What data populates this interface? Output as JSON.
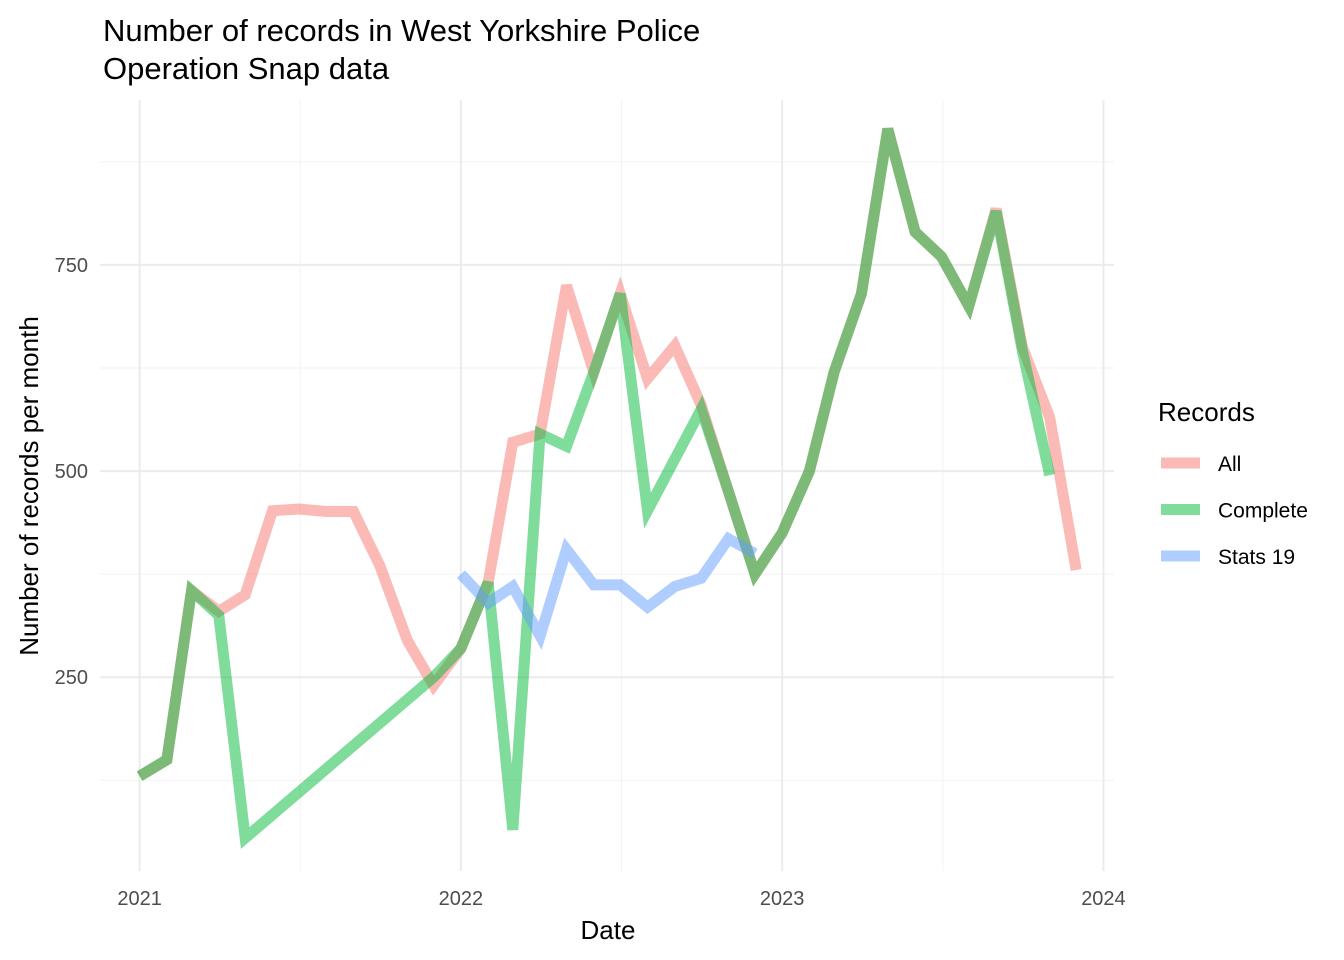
{
  "chart_data": {
    "type": "line",
    "title": "Number of records in West Yorkshire Police Operation Snap data",
    "title_lines": [
      "Number of records in West Yorkshire Police",
      "Operation Snap data"
    ],
    "xlabel": "Date",
    "ylabel": "Number of records per month",
    "x_axis": {
      "type": "date",
      "range": [
        "2020-11-17",
        "2024-01-13"
      ],
      "ticks": [
        "2021-01-01",
        "2022-01-01",
        "2023-01-01",
        "2024-01-01"
      ],
      "tick_labels": [
        "2021",
        "2022",
        "2023",
        "2024"
      ]
    },
    "y_axis": {
      "range": [
        15,
        950
      ],
      "ticks": [
        250,
        500,
        750
      ],
      "tick_labels": [
        "250",
        "500",
        "750"
      ]
    },
    "grid": true,
    "legend": {
      "title": "Records",
      "position": "right"
    },
    "series": [
      {
        "name": "All",
        "color": "#F8766D",
        "x": [
          "2021-01-01",
          "2021-02-01",
          "2021-03-01",
          "2021-04-01",
          "2021-05-01",
          "2021-06-01",
          "2021-07-01",
          "2021-08-01",
          "2021-09-01",
          "2021-10-01",
          "2021-11-01",
          "2021-12-01",
          "2022-01-01",
          "2022-02-01",
          "2022-03-01",
          "2022-04-01",
          "2022-05-01",
          "2022-06-01",
          "2022-07-01",
          "2022-08-01",
          "2022-09-01",
          "2022-10-01",
          "2022-11-01",
          "2022-12-01",
          "2023-01-01",
          "2023-02-01",
          "2023-03-01",
          "2023-04-01",
          "2023-05-01",
          "2023-06-01",
          "2023-07-01",
          "2023-08-01",
          "2023-09-01",
          "2023-10-01",
          "2023-11-01",
          "2023-12-01"
        ],
        "values": [
          130,
          150,
          355,
          330,
          350,
          452,
          454,
          451,
          451,
          385,
          295,
          240,
          285,
          365,
          535,
          545,
          725,
          620,
          715,
          612,
          652,
          580,
          475,
          375,
          425,
          500,
          620,
          715,
          915,
          790,
          760,
          700,
          818,
          650,
          565,
          380
        ]
      },
      {
        "name": "Complete",
        "color": "#00BA38",
        "x": [
          "2021-01-01",
          "2021-02-01",
          "2021-03-01",
          "2021-04-01",
          "2021-05-01",
          "2021-12-01",
          "2022-01-01",
          "2022-02-01",
          "2022-03-01",
          "2022-04-01",
          "2022-05-01",
          "2022-06-01",
          "2022-07-01",
          "2022-08-01",
          "2022-10-01",
          "2022-11-01",
          "2022-12-01",
          "2023-01-01",
          "2023-02-01",
          "2023-03-01",
          "2023-04-01",
          "2023-05-01",
          "2023-06-01",
          "2023-07-01",
          "2023-08-01",
          "2023-09-01",
          "2023-10-01",
          "2023-11-01"
        ],
        "values": [
          130,
          150,
          355,
          325,
          55,
          250,
          285,
          365,
          65,
          545,
          530,
          620,
          715,
          452,
          575,
          475,
          375,
          425,
          500,
          620,
          715,
          915,
          790,
          760,
          700,
          815,
          645,
          495
        ]
      },
      {
        "name": "Stats 19",
        "color": "#619CFF",
        "x": [
          "2022-01-01",
          "2022-02-01",
          "2022-03-01",
          "2022-04-01",
          "2022-05-01",
          "2022-06-01",
          "2022-07-01",
          "2022-08-01",
          "2022-09-01",
          "2022-10-01",
          "2022-11-01",
          "2022-12-01"
        ],
        "values": [
          375,
          340,
          360,
          300,
          405,
          362,
          362,
          335,
          360,
          370,
          418,
          400
        ]
      }
    ]
  }
}
